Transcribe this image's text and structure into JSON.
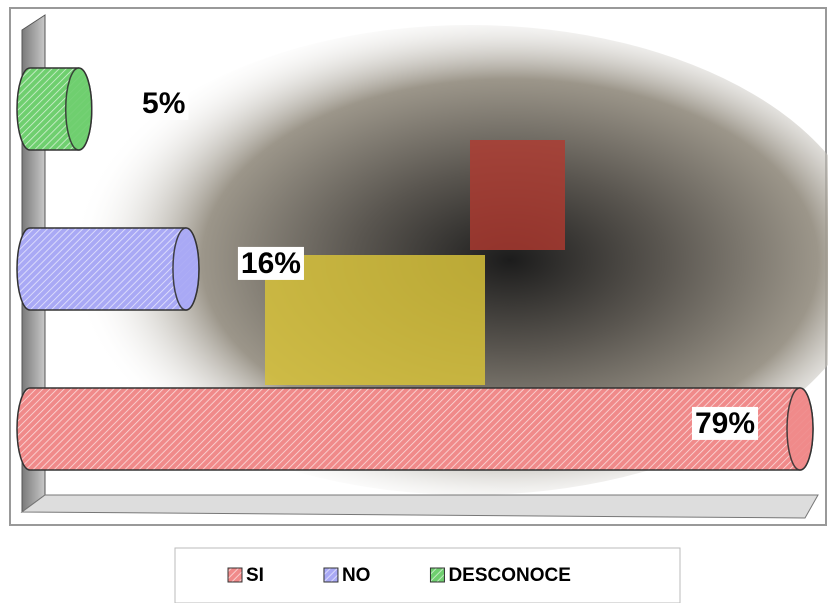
{
  "chart_data": {
    "type": "bar",
    "orientation": "horizontal",
    "categories": [
      "SI",
      "NO",
      "DESCONOCE"
    ],
    "values": [
      79,
      16,
      5
    ],
    "value_labels": [
      "79%",
      "16%",
      "5%"
    ],
    "colors": [
      "#f08a8a",
      "#a9a9f5",
      "#6fcf6f"
    ],
    "legend": "bottom"
  }
}
